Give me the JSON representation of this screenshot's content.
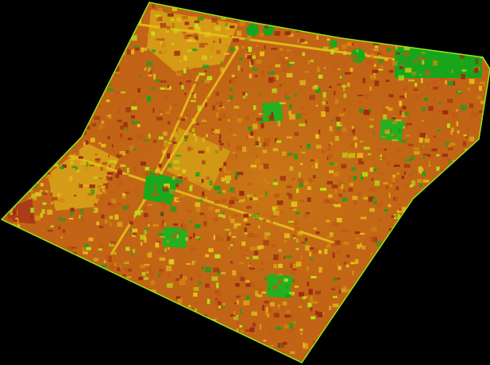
{
  "image": {
    "kind": "ndvi-false-color-aerial",
    "background_color": "#000000",
    "palette": {
      "low": "#9b2b12",
      "low_mid": "#c05a14",
      "mid": "#d38a10",
      "mid_high": "#e6c21a",
      "high": "#b7e61a",
      "very_high": "#15a11a",
      "edge": "#8fea18"
    }
  }
}
